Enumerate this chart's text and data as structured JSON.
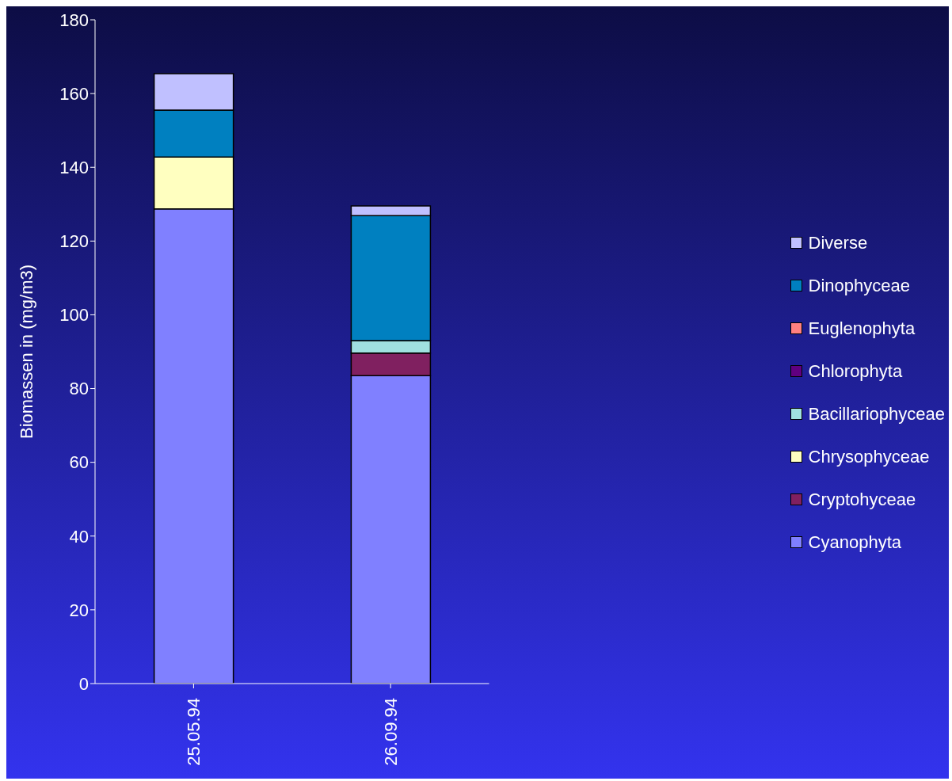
{
  "chart_data": {
    "type": "bar",
    "stacked": true,
    "ylabel": "Biomassen in (mg/m3)",
    "categories": [
      "25.05.94",
      "26.09.94"
    ],
    "series": [
      {
        "name": "Cyanophyta",
        "color": "#8080ff",
        "values": [
          128.7,
          83.5
        ]
      },
      {
        "name": "Cryptohyceae",
        "color": "#802060",
        "values": [
          0,
          6.1
        ]
      },
      {
        "name": "Chrysophyceae",
        "color": "#ffffc0",
        "values": [
          14.1,
          0
        ]
      },
      {
        "name": "Bacillariophyceae",
        "color": "#a0e0e0",
        "values": [
          0,
          3.4
        ]
      },
      {
        "name": "Chlorophyta",
        "color": "#600080",
        "values": [
          0,
          0
        ]
      },
      {
        "name": "Euglenophyta",
        "color": "#ff8080",
        "values": [
          0,
          0
        ]
      },
      {
        "name": "Dinophyceae",
        "color": "#0080c0",
        "values": [
          12.7,
          33.9
        ]
      },
      {
        "name": "Diverse",
        "color": "#c0c0ff",
        "values": [
          9.9,
          2.6
        ]
      }
    ],
    "ylim": [
      0,
      180
    ],
    "yticks": [
      0,
      20,
      40,
      60,
      80,
      100,
      120,
      140,
      160,
      180
    ],
    "grid": false,
    "legend": "right"
  }
}
